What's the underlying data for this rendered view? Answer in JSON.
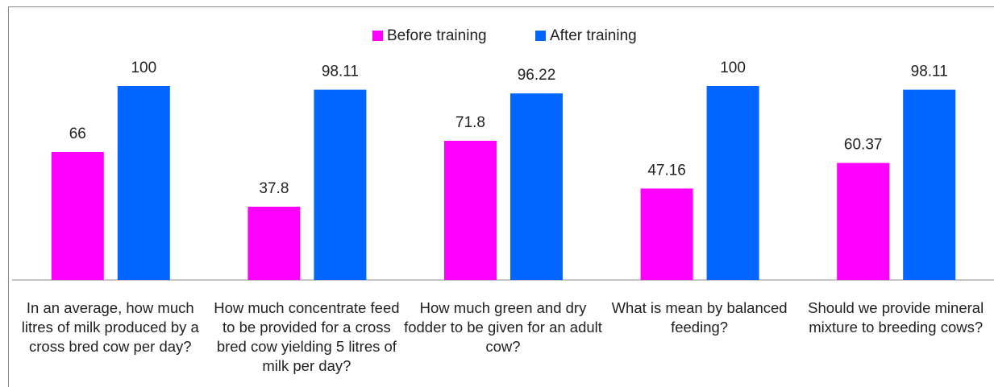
{
  "chart_data": {
    "type": "bar",
    "categories": [
      "In an average, how much litres of milk produced by a cross bred cow per day?",
      "How much concentrate feed to be provided for a cross bred cow yielding 5 litres of milk per day?",
      "How much green and dry fodder to be given for an adult cow?",
      "What is mean by balanced feeding?",
      "Should we provide mineral mixture to breeding cows?"
    ],
    "series": [
      {
        "name": "Before training",
        "color": "#ff00ff",
        "values": [
          66,
          37.8,
          71.8,
          47.16,
          60.37
        ]
      },
      {
        "name": "After training",
        "color": "#0066ff",
        "values": [
          100,
          98.11,
          96.22,
          100,
          98.11
        ]
      }
    ],
    "legend": "top"
  }
}
